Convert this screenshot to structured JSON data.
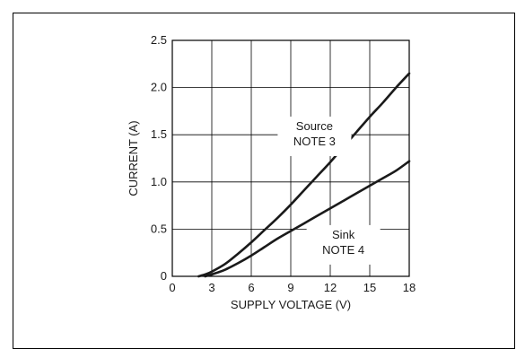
{
  "chart_data": {
    "type": "line",
    "xlabel": "SUPPLY VOLTAGE (V)",
    "ylabel": "CURRENT (A)",
    "xlim": [
      0,
      18
    ],
    "ylim": [
      0,
      2.5
    ],
    "x_ticks": [
      "0",
      "3",
      "6",
      "9",
      "12",
      "15",
      "18"
    ],
    "y_ticks": [
      "0",
      "0.5",
      "1.0",
      "1.5",
      "2.0",
      "2.5"
    ],
    "grid": true,
    "series": [
      {
        "x": [
          2.0,
          2.5,
          3,
          4,
          5,
          6,
          7,
          8,
          9,
          10,
          11,
          12,
          13,
          14,
          15,
          16,
          17,
          18
        ],
        "y": [
          0,
          0.02,
          0.05,
          0.13,
          0.24,
          0.36,
          0.49,
          0.62,
          0.76,
          0.91,
          1.06,
          1.21,
          1.37,
          1.53,
          1.69,
          1.84,
          2.0,
          2.15
        ],
        "annotation": [
          "Source",
          "NOTE 3"
        ]
      },
      {
        "x": [
          2.5,
          3,
          4,
          5,
          6,
          7,
          8,
          9,
          10,
          11,
          12,
          13,
          14,
          15,
          16,
          17,
          18
        ],
        "y": [
          0,
          0.02,
          0.07,
          0.14,
          0.22,
          0.31,
          0.4,
          0.48,
          0.56,
          0.64,
          0.72,
          0.8,
          0.88,
          0.96,
          1.04,
          1.12,
          1.22
        ],
        "annotation": [
          "Sink",
          "NOTE 4"
        ]
      }
    ]
  }
}
